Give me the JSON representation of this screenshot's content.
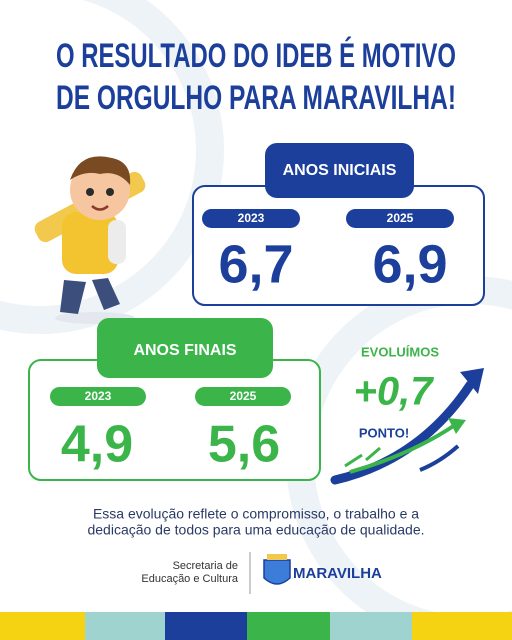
{
  "header": {
    "title_line1": "O RESULTADO DO IDEB É MOTIVO",
    "title_line2": "DE ORGULHO PARA MARAVILHA!"
  },
  "anos_iniciais": {
    "label": "ANOS INICIAIS",
    "years": [
      "2023",
      "2025"
    ],
    "values": [
      "6,7",
      "6,9"
    ]
  },
  "anos_finais": {
    "label": "ANOS FINAIS",
    "years": [
      "2023",
      "2025"
    ],
    "values": [
      "4,9",
      "5,6"
    ]
  },
  "evolution": {
    "heading": "EVOLUÍMOS",
    "value": "+0,7",
    "unit": "PONTO!"
  },
  "message": {
    "line1": "Essa evolução reflete o compromisso, o trabalho e a",
    "line2": "dedicação de todos para uma educação de qualidade."
  },
  "footer": {
    "department_line1": "Secretaria de",
    "department_line2": "Educação e Cultura",
    "city": "MARAVILHA"
  }
}
